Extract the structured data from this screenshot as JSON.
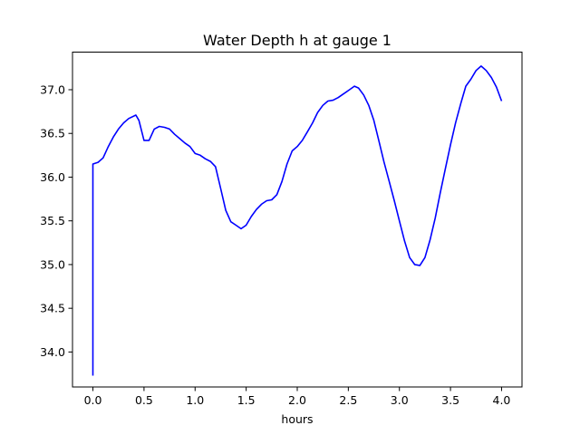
{
  "chart_data": {
    "type": "line",
    "title": "Water Depth h at gauge 1",
    "xlabel": "hours",
    "ylabel": "",
    "xlim": [
      -0.2,
      4.2
    ],
    "ylim": [
      33.6,
      37.43
    ],
    "xticks": [
      0.0,
      0.5,
      1.0,
      1.5,
      2.0,
      2.5,
      3.0,
      3.5,
      4.0
    ],
    "xtick_labels": [
      "0.0",
      "0.5",
      "1.0",
      "1.5",
      "2.0",
      "2.5",
      "3.0",
      "3.5",
      "4.0"
    ],
    "yticks": [
      34.0,
      34.5,
      35.0,
      35.5,
      36.0,
      36.5,
      37.0
    ],
    "ytick_labels": [
      "34.0",
      "34.5",
      "35.0",
      "35.5",
      "36.0",
      "36.5",
      "37.0"
    ],
    "grid": false,
    "color": "#0000ff",
    "x": [
      0.0,
      0.0,
      0.05,
      0.1,
      0.15,
      0.2,
      0.25,
      0.3,
      0.35,
      0.42,
      0.45,
      0.5,
      0.55,
      0.6,
      0.65,
      0.7,
      0.75,
      0.8,
      0.85,
      0.9,
      0.95,
      1.0,
      1.05,
      1.1,
      1.15,
      1.2,
      1.25,
      1.3,
      1.35,
      1.4,
      1.45,
      1.5,
      1.55,
      1.6,
      1.65,
      1.7,
      1.75,
      1.8,
      1.85,
      1.9,
      1.95,
      2.0,
      2.05,
      2.1,
      2.15,
      2.2,
      2.25,
      2.3,
      2.35,
      2.4,
      2.45,
      2.5,
      2.56,
      2.6,
      2.65,
      2.7,
      2.75,
      2.8,
      2.85,
      2.9,
      2.95,
      3.0,
      3.05,
      3.1,
      3.15,
      3.2,
      3.25,
      3.3,
      3.35,
      3.4,
      3.45,
      3.5,
      3.55,
      3.6,
      3.65,
      3.7,
      3.75,
      3.8,
      3.85,
      3.9,
      3.95,
      4.0
    ],
    "values": [
      33.73,
      36.15,
      36.17,
      36.22,
      36.35,
      36.46,
      36.55,
      36.62,
      36.67,
      36.71,
      36.65,
      36.42,
      36.42,
      36.55,
      36.58,
      36.57,
      36.55,
      36.49,
      36.44,
      36.39,
      36.35,
      36.27,
      36.25,
      36.21,
      36.18,
      36.12,
      35.87,
      35.62,
      35.49,
      35.45,
      35.41,
      35.45,
      35.55,
      35.63,
      35.69,
      35.73,
      35.74,
      35.8,
      35.95,
      36.15,
      36.3,
      36.35,
      36.42,
      36.52,
      36.62,
      36.74,
      36.82,
      36.87,
      36.88,
      36.91,
      36.95,
      36.99,
      37.04,
      37.02,
      36.94,
      36.82,
      36.65,
      36.41,
      36.17,
      35.95,
      35.73,
      35.5,
      35.27,
      35.08,
      35.0,
      34.99,
      35.08,
      35.28,
      35.53,
      35.82,
      36.1,
      36.37,
      36.62,
      36.84,
      37.04,
      37.12,
      37.22,
      37.27,
      37.22,
      37.14,
      37.03,
      36.87
    ]
  }
}
